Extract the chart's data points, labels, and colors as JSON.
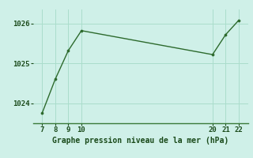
{
  "x": [
    7,
    8,
    9,
    10,
    20,
    21,
    22
  ],
  "y": [
    1023.75,
    1024.6,
    1025.32,
    1025.82,
    1025.22,
    1025.72,
    1026.08
  ],
  "line_color": "#2d6a2d",
  "marker_color": "#2d6a2d",
  "bg_color": "#cff0e8",
  "grid_color": "#aaddcc",
  "xlabel": "Graphe pression niveau de la mer (hPa)",
  "xlabel_color": "#1a4a1a",
  "tick_color": "#1a4a1a",
  "border_color": "#3a7a3a",
  "yticks": [
    1024,
    1025,
    1026
  ],
  "xticks": [
    7,
    8,
    9,
    10,
    20,
    21,
    22
  ],
  "ylim": [
    1023.5,
    1026.35
  ],
  "xlim": [
    6.3,
    22.7
  ]
}
